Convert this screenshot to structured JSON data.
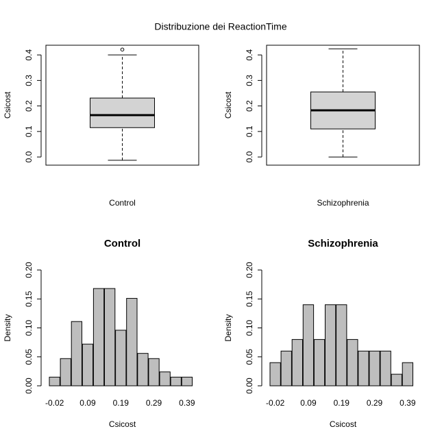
{
  "title": "Distribuzione dei ReactionTime",
  "chart_data": [
    {
      "type": "boxplot",
      "xlabel": "Control",
      "ylabel": "Csicost",
      "min": -0.013,
      "q1": 0.115,
      "median": 0.164,
      "q3": 0.231,
      "max": 0.4,
      "outliers": [
        0.421
      ],
      "color": "#d3d3d3",
      "ylim": [
        -0.032,
        0.438
      ],
      "yticks": [
        {
          "value": 0,
          "label": "0.0"
        },
        0.1,
        0.2,
        0.3,
        0.4
      ]
    },
    {
      "type": "boxplot",
      "xlabel": "Schizophrenia",
      "ylabel": "Csicost",
      "min": 0.0,
      "q1": 0.11,
      "median": 0.183,
      "q3": 0.255,
      "max": 0.424,
      "color": "#d3d3d3",
      "ylim": [
        -0.032,
        0.438
      ],
      "yticks": [
        {
          "value": 0,
          "label": "0.0"
        },
        0.1,
        0.2,
        0.3,
        0.4
      ]
    },
    {
      "type": "bar",
      "title": "Control",
      "xlabel": "Csicost",
      "ylabel": "Density",
      "categories": [
        "-0.02",
        null,
        null,
        "0.09",
        null,
        null,
        "0.19",
        null,
        null,
        "0.29",
        null,
        null,
        "0.39"
      ],
      "values": [
        0.015,
        0.047,
        0.111,
        0.072,
        0.168,
        0.168,
        0.096,
        0.151,
        0.056,
        0.047,
        0.024,
        0.015,
        0.015
      ],
      "color": "#bebebe",
      "ylim": [
        0,
        0.2
      ],
      "yticks": [
        {
          "value": 0,
          "label": "0.00"
        },
        {
          "value": 0.05,
          "label": "0.05"
        },
        {
          "value": 0.1,
          "label": "0.10"
        },
        {
          "value": 0.15,
          "label": "0.15"
        },
        {
          "value": 0.2,
          "label": "0.20"
        }
      ]
    },
    {
      "type": "bar",
      "title": "Schizophrenia",
      "xlabel": "Csicost",
      "ylabel": "Density",
      "categories": [
        "-0.02",
        null,
        null,
        "0.09",
        null,
        null,
        "0.19",
        null,
        null,
        "0.29",
        null,
        null,
        "0.39"
      ],
      "values": [
        0.04,
        0.06,
        0.08,
        0.14,
        0.08,
        0.14,
        0.14,
        0.08,
        0.06,
        0.06,
        0.06,
        0.02,
        0.04
      ],
      "color": "#bebebe",
      "ylim": [
        0,
        0.2
      ],
      "yticks": [
        {
          "value": 0,
          "label": "0.00"
        },
        {
          "value": 0.05,
          "label": "0.05"
        },
        {
          "value": 0.1,
          "label": "0.10"
        },
        {
          "value": 0.15,
          "label": "0.15"
        },
        {
          "value": 0.2,
          "label": "0.20"
        }
      ]
    }
  ]
}
